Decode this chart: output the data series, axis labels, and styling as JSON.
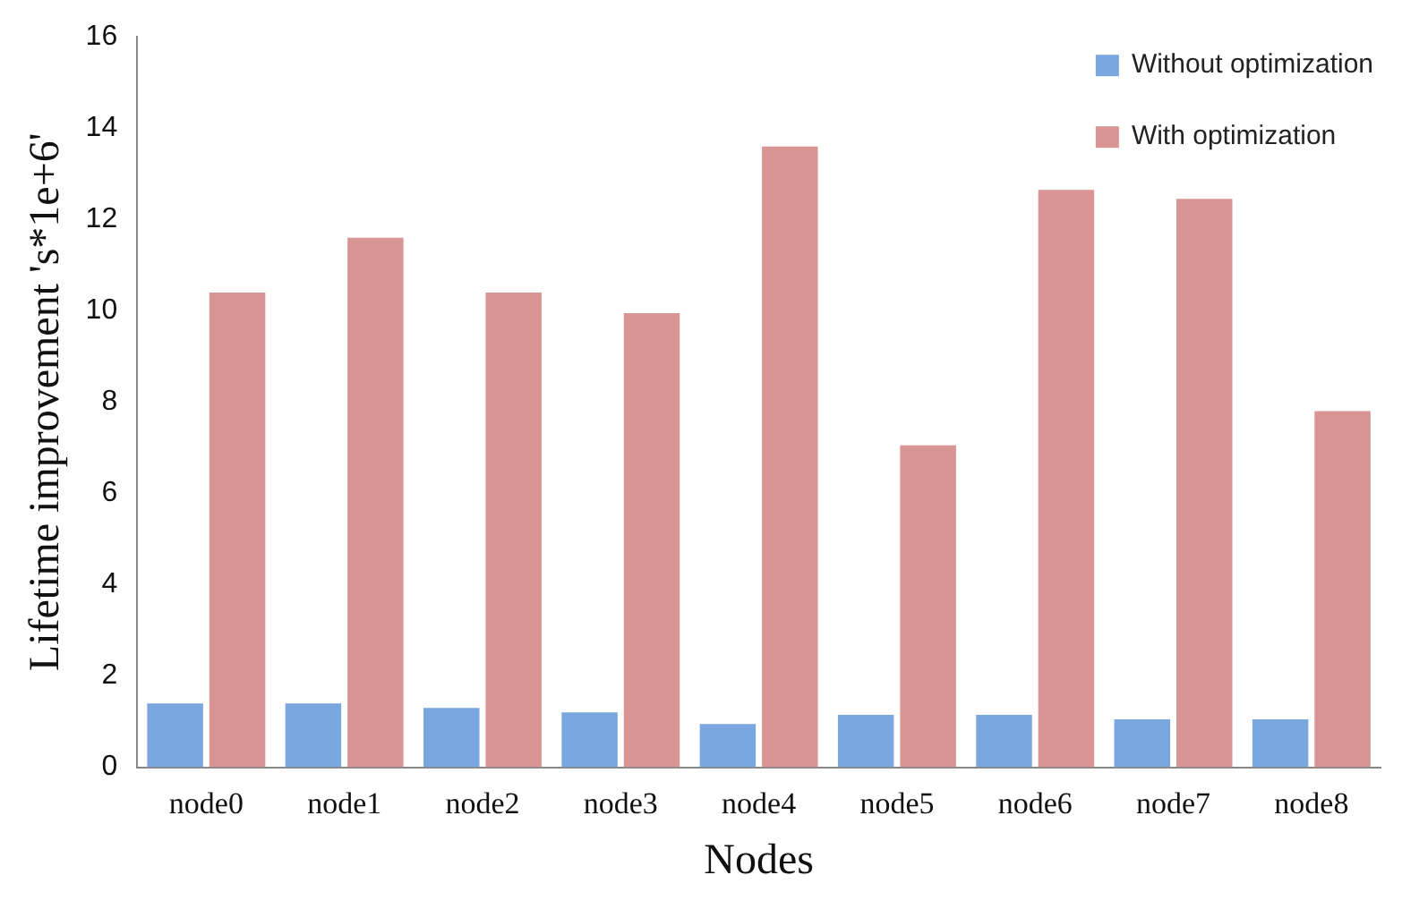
{
  "chart_data": {
    "type": "bar",
    "xlabel": "Nodes",
    "ylabel": "Lifetime improvement 's*1e+6'",
    "categories": [
      "node0",
      "node1",
      "node2",
      "node3",
      "node4",
      "node5",
      "node6",
      "node7",
      "node8"
    ],
    "series": [
      {
        "name": "Without optimization",
        "color": "#7ba7e0",
        "values": [
          1.4,
          1.4,
          1.3,
          1.2,
          0.95,
          1.15,
          1.15,
          1.05,
          1.05
        ]
      },
      {
        "name": "With optimization",
        "color": "#d99594",
        "values": [
          10.4,
          11.6,
          10.4,
          9.95,
          13.6,
          7.05,
          12.65,
          12.45,
          7.8
        ]
      }
    ],
    "ylim": [
      0,
      16
    ],
    "yticks": [
      0,
      2,
      4,
      6,
      8,
      10,
      12,
      14,
      16
    ],
    "grid": false,
    "legend": "top right"
  }
}
